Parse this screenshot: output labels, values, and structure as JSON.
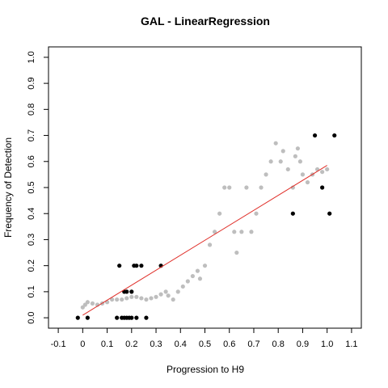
{
  "chart_data": {
    "type": "scatter",
    "title": "GAL - LinearRegression",
    "x_label": "Progression to H9",
    "y_label": "Frequency of Detection",
    "xlim": [
      -0.14,
      1.14
    ],
    "ylim": [
      -0.04,
      1.04
    ],
    "xticks": [
      -0.1,
      {
        "value": 0,
        "label": "0"
      },
      0.1,
      0.2,
      0.3,
      0.4,
      0.5,
      0.6,
      0.7,
      0.8,
      0.9,
      {
        "value": 1,
        "label": "1.0"
      },
      1.1
    ],
    "yticks": [
      {
        "value": 0,
        "label": "0.0"
      },
      0.1,
      0.2,
      0.3,
      0.4,
      0.5,
      0.6,
      0.7,
      0.8,
      0.9,
      {
        "value": 1,
        "label": "1.0"
      }
    ],
    "series": [
      {
        "mode": "points",
        "color": "#bebebe",
        "x": [
          0.0,
          0.01,
          0.02,
          0.04,
          0.06,
          0.08,
          0.1,
          0.12,
          0.14,
          0.16,
          0.18,
          0.2,
          0.22,
          0.24,
          0.26,
          0.28,
          0.3,
          0.32,
          0.34,
          0.35,
          0.37,
          0.39,
          0.41,
          0.43,
          0.45,
          0.47,
          0.48,
          0.5,
          0.52,
          0.54,
          0.56,
          0.58,
          0.6,
          0.62,
          0.63,
          0.65,
          0.67,
          0.69,
          0.71,
          0.73,
          0.75,
          0.77,
          0.79,
          0.81,
          0.82,
          0.84,
          0.86,
          0.87,
          0.88,
          0.89,
          0.9,
          0.92,
          0.94,
          0.96,
          0.98,
          1.0
        ],
        "values": [
          0.04,
          0.05,
          0.06,
          0.055,
          0.05,
          0.055,
          0.06,
          0.07,
          0.07,
          0.07,
          0.075,
          0.08,
          0.08,
          0.075,
          0.07,
          0.075,
          0.08,
          0.09,
          0.1,
          0.085,
          0.07,
          0.1,
          0.12,
          0.14,
          0.16,
          0.18,
          0.15,
          0.2,
          0.28,
          0.33,
          0.4,
          0.5,
          0.5,
          0.33,
          0.25,
          0.33,
          0.5,
          0.33,
          0.4,
          0.5,
          0.55,
          0.6,
          0.67,
          0.6,
          0.64,
          0.57,
          0.5,
          0.62,
          0.65,
          0.6,
          0.55,
          0.52,
          0.55,
          0.57,
          0.56,
          0.57
        ]
      },
      {
        "mode": "points",
        "color": "#000000",
        "x": [
          -0.02,
          0.02,
          0.15,
          0.17,
          0.18,
          0.2,
          0.21,
          0.22,
          0.24,
          0.32,
          0.14,
          0.16,
          0.17,
          0.18,
          0.19,
          0.2,
          0.22,
          0.26,
          0.86,
          0.95,
          0.98,
          1.01,
          1.03
        ],
        "values": [
          0,
          0,
          0.2,
          0.1,
          0.1,
          0.1,
          0.2,
          0.2,
          0.2,
          0.2,
          0,
          0,
          0,
          0,
          0,
          0,
          0,
          0,
          0.4,
          0.7,
          0.5,
          0.4,
          0.7
        ]
      },
      {
        "mode": "line",
        "color": "#e0302a",
        "x": [
          0,
          1
        ],
        "values": [
          0.01,
          0.585
        ]
      }
    ]
  }
}
